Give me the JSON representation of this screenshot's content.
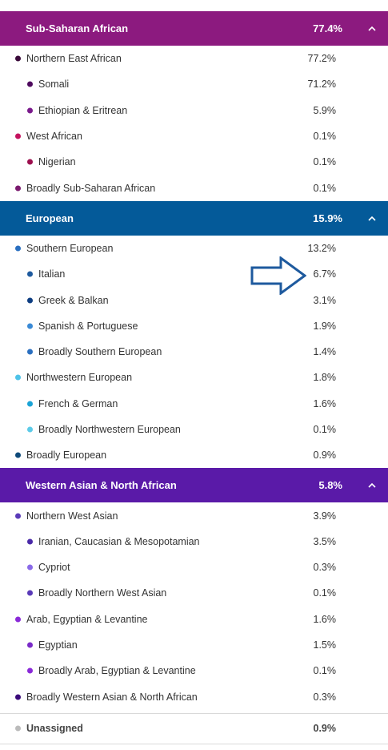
{
  "sections": [
    {
      "title": "Sub-Saharan African",
      "value": "77.4%",
      "color": "#8c1a7f",
      "chevron": "^",
      "rows": [
        {
          "label": "Northern East African",
          "value": "77.2%",
          "level": 1,
          "dot": "#3a0a3a"
        },
        {
          "label": "Somali",
          "value": "71.2%",
          "level": 2,
          "dot": "#4e0a5e"
        },
        {
          "label": "Ethiopian & Eritrean",
          "value": "5.9%",
          "level": 2,
          "dot": "#7a1a8c"
        },
        {
          "label": "West African",
          "value": "0.1%",
          "level": 1,
          "dot": "#c4125e"
        },
        {
          "label": "Nigerian",
          "value": "0.1%",
          "level": 2,
          "dot": "#9c0f4e"
        },
        {
          "label": "Broadly Sub-Saharan African",
          "value": "0.1%",
          "level": 1,
          "dot": "#7a1a6e"
        }
      ]
    },
    {
      "title": "European",
      "value": "15.9%",
      "color": "#045a99",
      "chevron": "^",
      "rows": [
        {
          "label": "Southern European",
          "value": "13.2%",
          "level": 1,
          "dot": "#2a6fc0"
        },
        {
          "label": "Italian",
          "value": "6.7%",
          "level": 2,
          "dot": "#1e5a9e"
        },
        {
          "label": "Greek & Balkan",
          "value": "3.1%",
          "level": 2,
          "dot": "#0e3e82"
        },
        {
          "label": "Spanish & Portuguese",
          "value": "1.9%",
          "level": 2,
          "dot": "#3a8ad6"
        },
        {
          "label": "Broadly Southern European",
          "value": "1.4%",
          "level": 2,
          "dot": "#2a6fc0"
        },
        {
          "label": "Northwestern European",
          "value": "1.8%",
          "level": 1,
          "dot": "#4fc3e8"
        },
        {
          "label": "French & German",
          "value": "1.6%",
          "level": 2,
          "dot": "#1aa3d6"
        },
        {
          "label": "Broadly Northwestern European",
          "value": "0.1%",
          "level": 2,
          "dot": "#5ccbe8"
        },
        {
          "label": "Broadly European",
          "value": "0.9%",
          "level": 1,
          "dot": "#0e4a7a"
        }
      ]
    },
    {
      "title": "Western Asian & North African",
      "value": "5.8%",
      "color": "#5a1aa8",
      "chevron": "^",
      "rows": [
        {
          "label": "Northern West Asian",
          "value": "3.9%",
          "level": 1,
          "dot": "#5a3ab8"
        },
        {
          "label": "Iranian, Caucasian & Mesopotamian",
          "value": "3.5%",
          "level": 2,
          "dot": "#4a2aa8"
        },
        {
          "label": "Cypriot",
          "value": "0.3%",
          "level": 2,
          "dot": "#8a6ae8"
        },
        {
          "label": "Broadly Northern West Asian",
          "value": "0.1%",
          "level": 2,
          "dot": "#5a3ab8"
        },
        {
          "label": "Arab, Egyptian & Levantine",
          "value": "1.6%",
          "level": 1,
          "dot": "#8a2ad8"
        },
        {
          "label": "Egyptian",
          "value": "1.5%",
          "level": 2,
          "dot": "#7a2ac8"
        },
        {
          "label": "Broadly Arab, Egyptian & Levantine",
          "value": "0.1%",
          "level": 2,
          "dot": "#8a2ad8"
        },
        {
          "label": "Broadly Western Asian & North African",
          "value": "0.3%",
          "level": 1,
          "dot": "#3a0a7a"
        }
      ]
    }
  ],
  "unassigned": {
    "label": "Unassigned",
    "value": "0.9%",
    "dot": "#bbbbbb"
  },
  "annotation": {
    "color": "#1e5a9e"
  }
}
